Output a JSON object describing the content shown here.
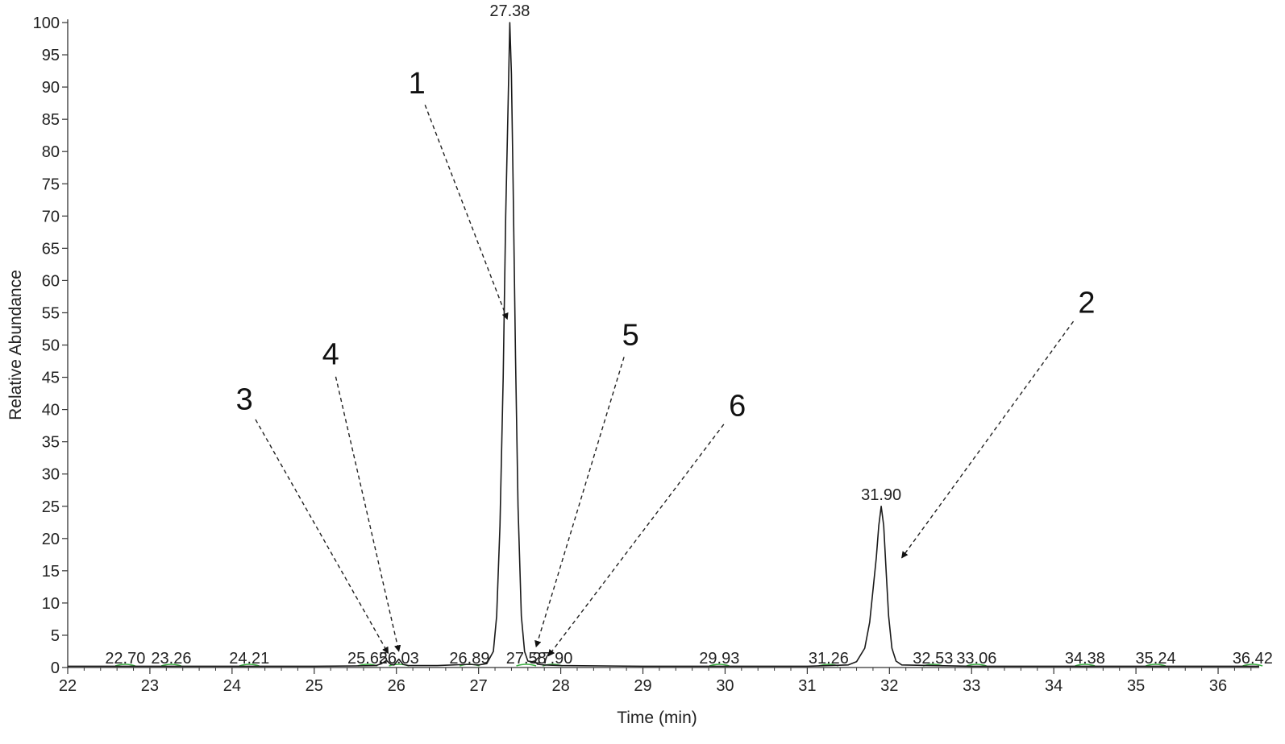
{
  "chart_data": {
    "type": "line",
    "xlabel": "Time (min)",
    "ylabel": "Relative Abundance",
    "xlim": [
      22,
      36.5
    ],
    "ylim": [
      0,
      100
    ],
    "x_ticks": [
      "22",
      "23",
      "24",
      "25",
      "26",
      "27",
      "28",
      "29",
      "30",
      "31",
      "32",
      "33",
      "34",
      "35",
      "36"
    ],
    "y_ticks": [
      "0",
      "5",
      "10",
      "15",
      "20",
      "25",
      "30",
      "35",
      "40",
      "45",
      "50",
      "55",
      "60",
      "65",
      "70",
      "75",
      "80",
      "85",
      "90",
      "95",
      "100"
    ],
    "series": [
      {
        "color": "#1a1a1a",
        "points": [
          [
            22.0,
            0.2
          ],
          [
            23.0,
            0.2
          ],
          [
            24.0,
            0.2
          ],
          [
            25.0,
            0.2
          ],
          [
            25.5,
            0.25
          ],
          [
            25.75,
            0.3
          ],
          [
            25.82,
            0.6
          ],
          [
            25.88,
            1.1
          ],
          [
            25.93,
            0.5
          ],
          [
            25.97,
            0.4
          ],
          [
            26.03,
            1.3
          ],
          [
            26.08,
            0.5
          ],
          [
            26.15,
            0.3
          ],
          [
            26.5,
            0.3
          ],
          [
            26.89,
            0.5
          ],
          [
            27.0,
            0.4
          ],
          [
            27.1,
            0.6
          ],
          [
            27.18,
            2.5
          ],
          [
            27.22,
            8
          ],
          [
            27.26,
            22
          ],
          [
            27.3,
            45
          ],
          [
            27.33,
            70
          ],
          [
            27.36,
            88
          ],
          [
            27.38,
            100
          ],
          [
            27.4,
            92
          ],
          [
            27.42,
            75
          ],
          [
            27.45,
            48
          ],
          [
            27.48,
            25
          ],
          [
            27.52,
            8
          ],
          [
            27.56,
            2.5
          ],
          [
            27.6,
            1.0
          ],
          [
            27.65,
            0.9
          ],
          [
            27.68,
            1.0
          ],
          [
            27.72,
            0.5
          ],
          [
            27.8,
            0.4
          ],
          [
            28.0,
            0.3
          ],
          [
            29.0,
            0.2
          ],
          [
            30.0,
            0.2
          ],
          [
            31.0,
            0.2
          ],
          [
            31.26,
            0.3
          ],
          [
            31.5,
            0.4
          ],
          [
            31.6,
            0.9
          ],
          [
            31.7,
            3
          ],
          [
            31.76,
            7
          ],
          [
            31.8,
            12
          ],
          [
            31.84,
            17
          ],
          [
            31.87,
            22
          ],
          [
            31.9,
            25
          ],
          [
            31.93,
            22
          ],
          [
            31.96,
            15
          ],
          [
            31.99,
            8
          ],
          [
            32.03,
            3
          ],
          [
            32.08,
            1
          ],
          [
            32.15,
            0.4
          ],
          [
            32.53,
            0.3
          ],
          [
            33.0,
            0.2
          ],
          [
            34.0,
            0.2
          ],
          [
            35.0,
            0.2
          ],
          [
            36.0,
            0.2
          ],
          [
            36.5,
            0.2
          ]
        ]
      }
    ],
    "baseline_color": "#3cb043",
    "peak_labels": [
      {
        "text": "22.70",
        "x": 22.7
      },
      {
        "text": "23.26",
        "x": 23.26
      },
      {
        "text": "24.21",
        "x": 24.21
      },
      {
        "text": "25.65",
        "x": 25.65
      },
      {
        "text": "26.03",
        "x": 26.03
      },
      {
        "text": "26.89",
        "x": 26.89
      },
      {
        "text": "27.38",
        "x": 27.38,
        "y": 100
      },
      {
        "text": "27.58",
        "x": 27.58
      },
      {
        "text": "27.90",
        "x": 27.9
      },
      {
        "text": "29.93",
        "x": 29.93
      },
      {
        "text": "31.26",
        "x": 31.26
      },
      {
        "text": "31.90",
        "x": 31.9,
        "y": 25
      },
      {
        "text": "32.53",
        "x": 32.53
      },
      {
        "text": "33.06",
        "x": 33.06
      },
      {
        "text": "34.38",
        "x": 34.38
      },
      {
        "text": "35.24",
        "x": 35.24
      },
      {
        "text": "36.42",
        "x": 36.42
      }
    ],
    "annotations": [
      {
        "text": "1",
        "label_at": [
          26.25,
          89
        ],
        "arrow_to": [
          27.35,
          54
        ]
      },
      {
        "text": "2",
        "label_at": [
          34.4,
          55
        ],
        "arrow_to": [
          32.15,
          17
        ]
      },
      {
        "text": "3",
        "label_at": [
          24.15,
          40
        ],
        "arrow_to": [
          25.9,
          2.2
        ]
      },
      {
        "text": "4",
        "label_at": [
          25.2,
          47
        ],
        "arrow_to": [
          26.03,
          2.5
        ]
      },
      {
        "text": "5",
        "label_at": [
          28.85,
          50
        ],
        "arrow_to": [
          27.7,
          3.2
        ]
      },
      {
        "text": "6",
        "label_at": [
          30.15,
          39
        ],
        "arrow_to": [
          27.85,
          1.8
        ]
      }
    ]
  }
}
